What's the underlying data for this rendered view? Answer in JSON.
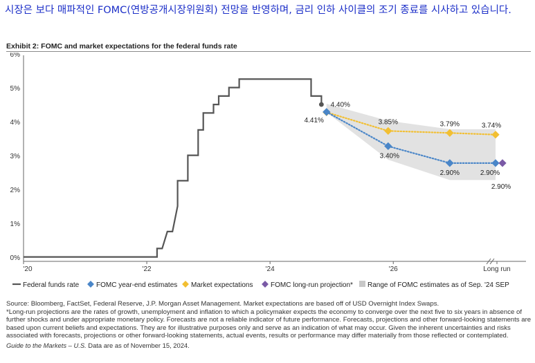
{
  "headline": "시장은 보다 매파적인 FOMC(연방공개시장위원회) 전망을 반영하며, 금리 인하 사이클의 조기 종료를 시사하고 있습니다.",
  "exhibit_title": "Exhibit 2:  FOMC and market expectations for the federal funds rate",
  "colors": {
    "fed_funds": "#555555",
    "fomc": "#4a86c8",
    "market": "#f2bf32",
    "long_run": "#7a5aa6",
    "range": "#e2e2e2",
    "headline": "#1c2fc8"
  },
  "chart_data": {
    "type": "line",
    "y_ticks": [
      "0%",
      "1%",
      "2%",
      "3%",
      "4%",
      "5%",
      "6%"
    ],
    "ylim": [
      0,
      6
    ],
    "x_ticks": [
      "'20",
      "'22",
      "'24",
      "'26",
      "Long run"
    ],
    "grid": false,
    "legend_position": "bottom",
    "series": [
      {
        "name": "Federal funds rate",
        "style": "step-line",
        "points": [
          [
            "2020-01",
            0.13
          ],
          [
            "2022-03",
            0.13
          ],
          [
            "2022-03",
            0.38
          ],
          [
            "2022-04",
            0.38
          ],
          [
            "2022-05",
            0.88
          ],
          [
            "2022-06",
            0.88
          ],
          [
            "2022-07",
            1.63
          ],
          [
            "2022-07",
            2.38
          ],
          [
            "2022-09",
            2.38
          ],
          [
            "2022-09",
            3.13
          ],
          [
            "2022-11",
            3.13
          ],
          [
            "2022-11",
            3.88
          ],
          [
            "2022-12",
            3.88
          ],
          [
            "2022-12",
            4.38
          ],
          [
            "2023-02",
            4.38
          ],
          [
            "2023-02",
            4.63
          ],
          [
            "2023-03",
            4.63
          ],
          [
            "2023-03",
            4.88
          ],
          [
            "2023-05",
            4.88
          ],
          [
            "2023-05",
            5.13
          ],
          [
            "2023-07",
            5.13
          ],
          [
            "2023-07",
            5.38
          ],
          [
            "2024-09",
            5.38
          ],
          [
            "2024-09",
            4.88
          ],
          [
            "2024-11",
            4.88
          ],
          [
            "2024-11",
            4.63
          ]
        ]
      },
      {
        "name": "FOMC year-end estimates",
        "style": "dotted-markers",
        "points": [
          [
            "2024-12",
            4.41
          ],
          [
            "2025-12",
            3.4
          ],
          [
            "2026-12",
            2.9
          ],
          [
            "Long run",
            2.9
          ]
        ],
        "labels": [
          "4.41%",
          "3.40%",
          "2.90%",
          "2.90%"
        ]
      },
      {
        "name": "Market expectations",
        "style": "dotted-markers",
        "points": [
          [
            "2024-12",
            4.4
          ],
          [
            "2025-12",
            3.85
          ],
          [
            "2026-12",
            3.79
          ],
          [
            "Long run",
            3.74
          ]
        ],
        "labels": [
          "4.40%",
          "3.85%",
          "3.79%",
          "3.74%"
        ]
      },
      {
        "name": "FOMC long-run projection*",
        "style": "marker",
        "points": [
          [
            "Long run",
            2.9
          ]
        ],
        "labels": [
          "2.90%"
        ]
      },
      {
        "name": "Range of FOMC estimates as of Sep. '24 SEP",
        "style": "band",
        "points": [
          [
            "2024-12",
            4.4,
            4.65
          ],
          [
            "2025-12",
            3.0,
            4.15
          ],
          [
            "2026-12",
            2.4,
            3.9
          ],
          [
            "Long run",
            2.4,
            3.9
          ]
        ]
      }
    ]
  },
  "notes": {
    "source": "Source: Bloomberg, FactSet, Federal Reserve, J.P. Morgan Asset Management. Market expectations are based off of USD Overnight Index Swaps.",
    "footnote": "*Long-run projections are the rates of growth, unemployment and inflation to which a policymaker expects the economy to converge over the next five to six years in absence of further shocks and under appropriate monetary policy. Forecasts are not a reliable indicator of future performance. Forecasts, projections and other forward-looking statements are based upon current beliefs and expectations. They are for illustrative purposes only and serve as an indication of what may occur. Given the inherent uncertainties and risks associated with forecasts, projections or other forward-looking statements, actual events, results or performance may differ materially from those reflected or contemplated.",
    "guide_label": "Guide to the Markets – U.S.",
    "data_as_of": " Data are as of November 15, 2024."
  }
}
